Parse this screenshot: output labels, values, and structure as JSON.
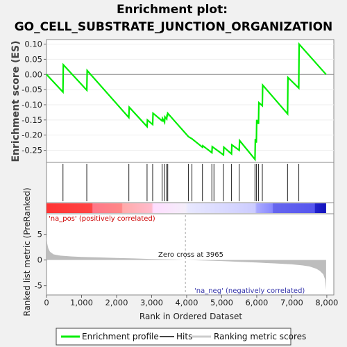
{
  "chart_data": [
    {
      "type": "line",
      "title_line1": "Enrichment plot:",
      "title_line2": "GO_CELL_SUBSTRATE_JUNCTION_ORGANIZATION",
      "ylabel": "Enrichment score (ES)",
      "xlim": [
        0,
        8200
      ],
      "ylim": [
        -0.29,
        0.115
      ],
      "yticks": [
        "0.10",
        "0.05",
        "0.00",
        "-0.05",
        "-0.10",
        "-0.15",
        "-0.20",
        "-0.25"
      ],
      "ytick_values": [
        0.1,
        0.05,
        0.0,
        -0.05,
        -0.1,
        -0.15,
        -0.2,
        -0.25
      ],
      "color": "#00ee00",
      "x": [
        0,
        470,
        480,
        1150,
        1160,
        2350,
        2360,
        2870,
        2880,
        3030,
        3040,
        3300,
        3310,
        3370,
        3380,
        3430,
        3440,
        3450,
        3460,
        4050,
        4150,
        4450,
        4460,
        4720,
        4730,
        5050,
        5060,
        5280,
        5290,
        5500,
        5510,
        5950,
        5960,
        5990,
        6000,
        6050,
        6060,
        6160,
        6170,
        6880,
        6890,
        7200,
        7210,
        7980
      ],
      "y": [
        0.0,
        -0.058,
        0.032,
        -0.052,
        0.013,
        -0.142,
        -0.108,
        -0.172,
        -0.15,
        -0.165,
        -0.128,
        -0.153,
        -0.145,
        -0.158,
        -0.14,
        -0.147,
        -0.132,
        -0.139,
        -0.128,
        -0.205,
        -0.212,
        -0.24,
        -0.235,
        -0.258,
        -0.238,
        -0.265,
        -0.24,
        -0.262,
        -0.232,
        -0.25,
        -0.218,
        -0.28,
        -0.213,
        -0.225,
        -0.15,
        -0.163,
        -0.093,
        -0.103,
        -0.035,
        -0.13,
        -0.01,
        -0.045,
        0.1,
        0.0
      ]
    },
    {
      "type": "scatter",
      "name": "hits",
      "x": [
        470,
        1150,
        2350,
        2870,
        3030,
        3300,
        3370,
        3430,
        3460,
        4050,
        4150,
        4450,
        4720,
        4780,
        5050,
        5280,
        5500,
        5950,
        5990,
        6050,
        6160,
        6880,
        7200
      ]
    },
    {
      "type": "heatmap",
      "name": "ranked list color bar",
      "stops": [
        {
          "x": 0,
          "color": "#ff3333"
        },
        {
          "x": 1300,
          "color": "#ff4444"
        },
        {
          "x": 1320,
          "color": "#ff7788"
        },
        {
          "x": 2150,
          "color": "#ff8888"
        },
        {
          "x": 2170,
          "color": "#ffaaaa"
        },
        {
          "x": 3000,
          "color": "#ffbbcc"
        },
        {
          "x": 3050,
          "color": "#ffddff"
        },
        {
          "x": 3965,
          "color": "#f4eefa"
        },
        {
          "x": 4050,
          "color": "#e8e8ff"
        },
        {
          "x": 5950,
          "color": "#ccccff"
        },
        {
          "x": 6000,
          "color": "#aaaaff"
        },
        {
          "x": 6450,
          "color": "#8888ff"
        },
        {
          "x": 6470,
          "color": "#6666ee"
        },
        {
          "x": 7650,
          "color": "#5555ee"
        },
        {
          "x": 7670,
          "color": "#2222cc"
        },
        {
          "x": 7980,
          "color": "#1111bb"
        }
      ]
    },
    {
      "type": "area",
      "ylabel": "Ranked list metric (PreRanked)",
      "xlabel": "Rank in Ordered Dataset",
      "xlim": [
        0,
        8200
      ],
      "ylim": [
        -6.8,
        9.0
      ],
      "yticks": [
        "5",
        "0",
        "-5"
      ],
      "ytick_values": [
        5,
        0,
        -5
      ],
      "xticks": [
        "0",
        "1,000",
        "2,000",
        "3,000",
        "4,000",
        "5,000",
        "6,000",
        "7,000",
        "8,000"
      ],
      "xtick_values": [
        0,
        1000,
        2000,
        3000,
        4000,
        5000,
        6000,
        7000,
        8000
      ],
      "x": [
        0,
        20,
        50,
        100,
        200,
        400,
        700,
        1000,
        1500,
        2000,
        2500,
        3000,
        3500,
        3965,
        4500,
        5000,
        5500,
        6000,
        6500,
        7000,
        7300,
        7500,
        7700,
        7800,
        7900,
        7950,
        7980
      ],
      "y": [
        4.8,
        3.2,
        2.3,
        1.6,
        1.1,
        0.85,
        0.7,
        0.6,
        0.5,
        0.4,
        0.3,
        0.2,
        0.1,
        0.0,
        -0.1,
        -0.2,
        -0.35,
        -0.5,
        -0.65,
        -0.85,
        -1.05,
        -1.25,
        -1.7,
        -2.1,
        -2.8,
        -3.8,
        -5.8
      ],
      "zero_cross_x": 3965,
      "zero_cross_label": "Zero cross at 3965",
      "pos_label": "'na_pos' (positively correlated)",
      "neg_label": "'na_neg' (negatively correlated)",
      "fill": "#bdbdbd"
    }
  ],
  "legend": {
    "items": [
      {
        "label": "Enrichment profile",
        "color": "#00ee00"
      },
      {
        "label": "Hits",
        "color": "#444444"
      },
      {
        "label": "Ranking metric scores",
        "color": "#cccccc"
      }
    ]
  }
}
